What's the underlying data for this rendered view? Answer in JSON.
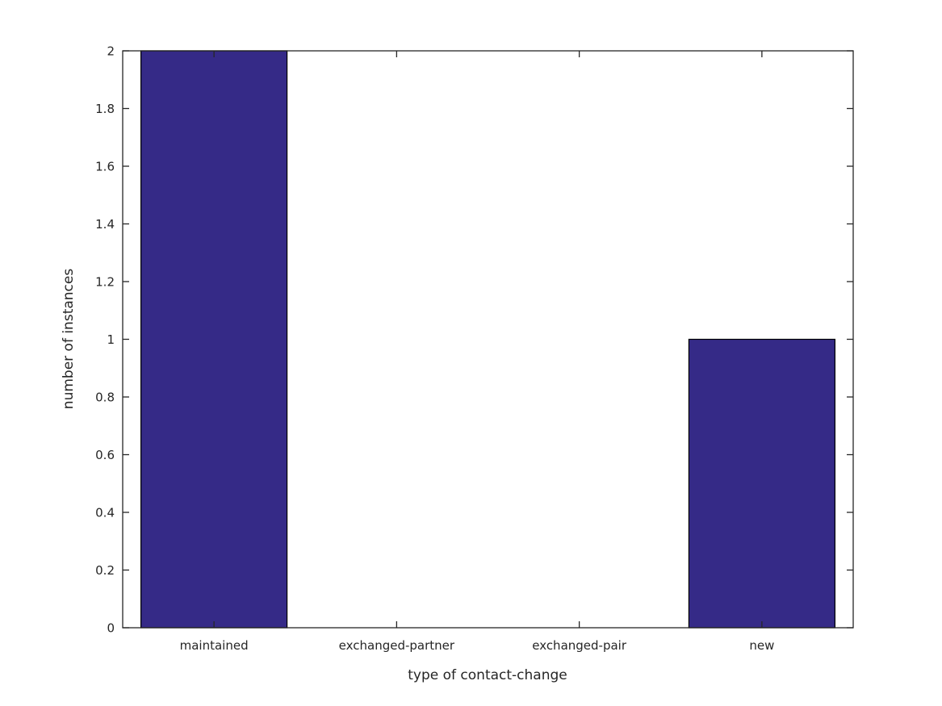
{
  "chart_data": {
    "type": "bar",
    "title": "",
    "xlabel": "type of contact-change",
    "ylabel": "number of instances",
    "categories": [
      "maintained",
      "exchanged-partner",
      "exchanged-pair",
      "new"
    ],
    "values": [
      2,
      0,
      0,
      1
    ],
    "ylim": [
      0,
      2
    ],
    "yticks": [
      0,
      0.2,
      0.4,
      0.6,
      0.8,
      1,
      1.2,
      1.4,
      1.6,
      1.8,
      2
    ],
    "ytick_labels": [
      "0",
      "0.2",
      "0.4",
      "0.6",
      "0.8",
      "1",
      "1.2",
      "1.4",
      "1.6",
      "1.8",
      "2"
    ],
    "bar_width_fraction": 0.8,
    "grid": false,
    "legend": null,
    "box": true,
    "tick_direction": "in",
    "colors": {
      "bar_fill": "#352a87",
      "bar_edge": "#000000",
      "axis_line": "#262626",
      "text": "#262626",
      "background": "#ffffff"
    }
  }
}
